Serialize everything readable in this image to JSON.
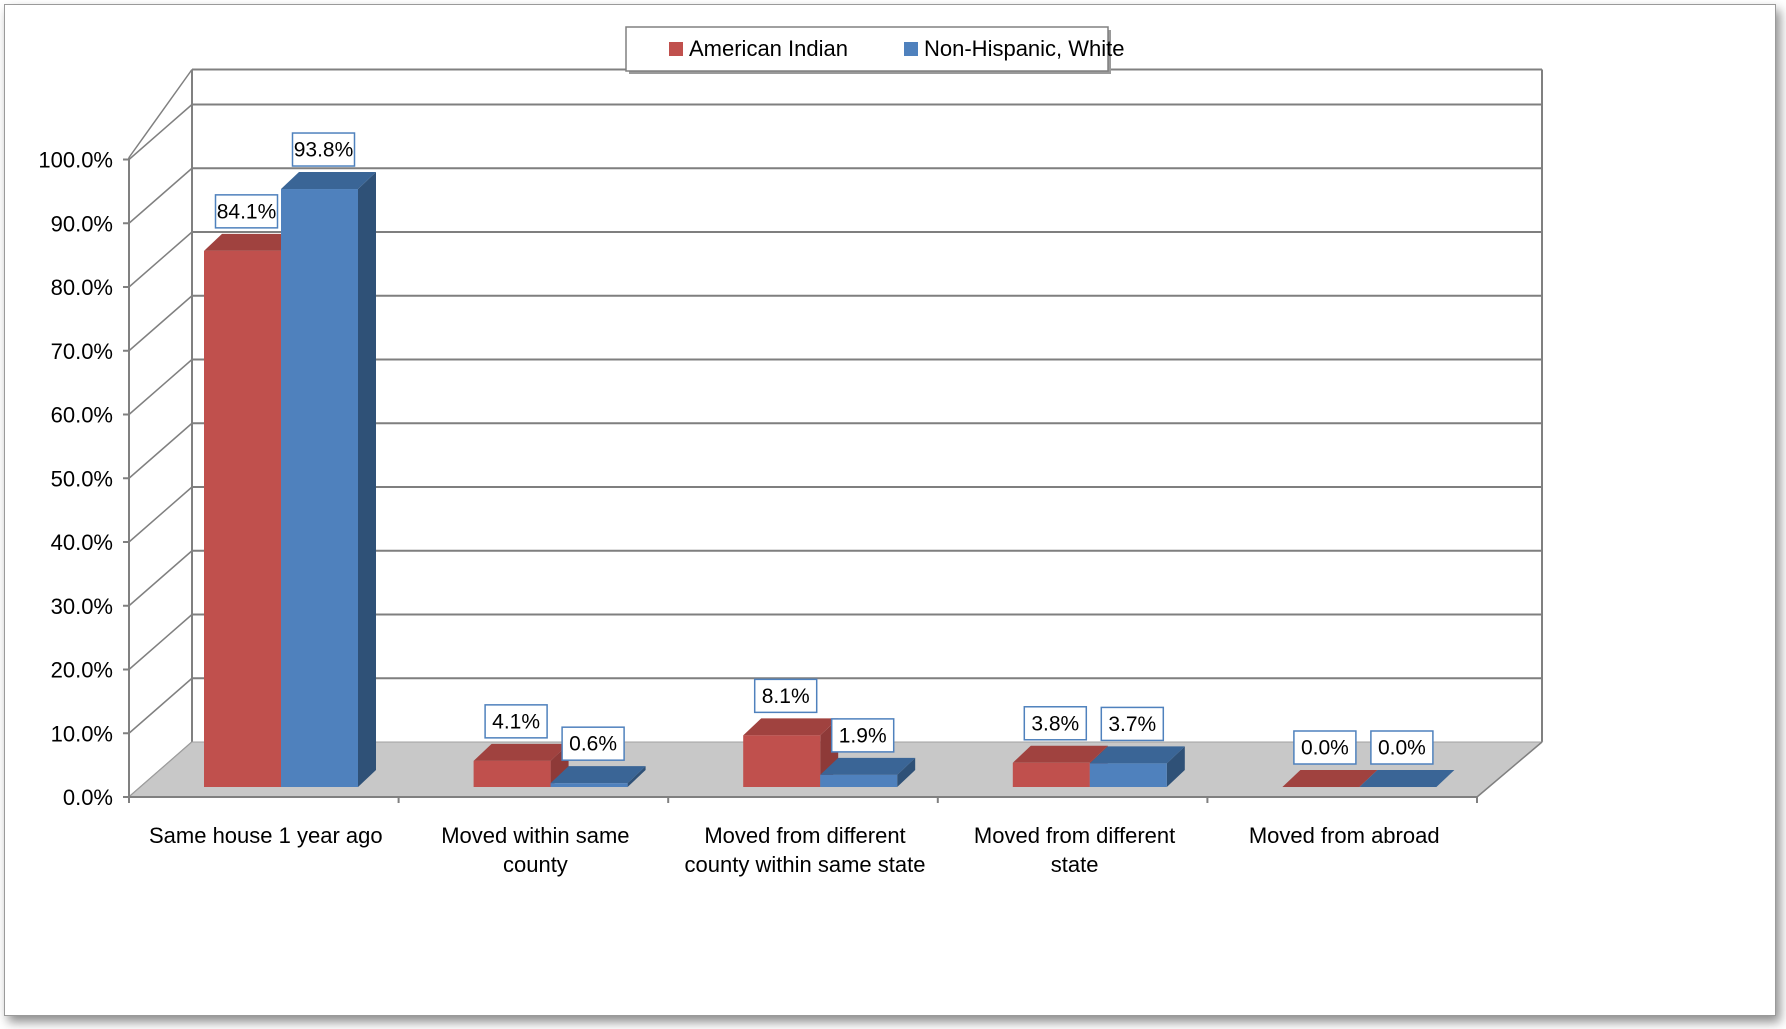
{
  "chart_data": {
    "type": "bar",
    "title": "",
    "xlabel": "",
    "ylabel": "",
    "categories": [
      [
        "Same house 1 year ago"
      ],
      [
        "Moved within same",
        "county"
      ],
      [
        "Moved from different",
        "county within same state"
      ],
      [
        "Moved from different",
        "state"
      ],
      [
        "Moved from abroad"
      ]
    ],
    "series": [
      {
        "name": "American Indian",
        "values": [
          84.1,
          4.1,
          8.1,
          3.8,
          0.0
        ],
        "labels": [
          "84.1%",
          "4.1%",
          "8.1%",
          "3.8%",
          "0.0%"
        ],
        "color": "#C0504D",
        "side_color": "#8E3A38",
        "top_color": "#A0423F"
      },
      {
        "name": "Non-Hispanic, White",
        "values": [
          93.8,
          0.6,
          1.9,
          3.7,
          0.0
        ],
        "labels": [
          "93.8%",
          "0.6%",
          "1.9%",
          "3.7%",
          "0.0%"
        ],
        "color": "#4F81BD",
        "side_color": "#2F5177",
        "top_color": "#3A6596"
      }
    ],
    "y_ticks": [
      "0.0%",
      "10.0%",
      "20.0%",
      "30.0%",
      "40.0%",
      "50.0%",
      "60.0%",
      "70.0%",
      "80.0%",
      "90.0%",
      "100.0%"
    ],
    "ylim": [
      0,
      100
    ],
    "grid": true,
    "legend_position": "top-center",
    "style": "3d-clustered-column",
    "floor_color": "#C8C8C8"
  }
}
